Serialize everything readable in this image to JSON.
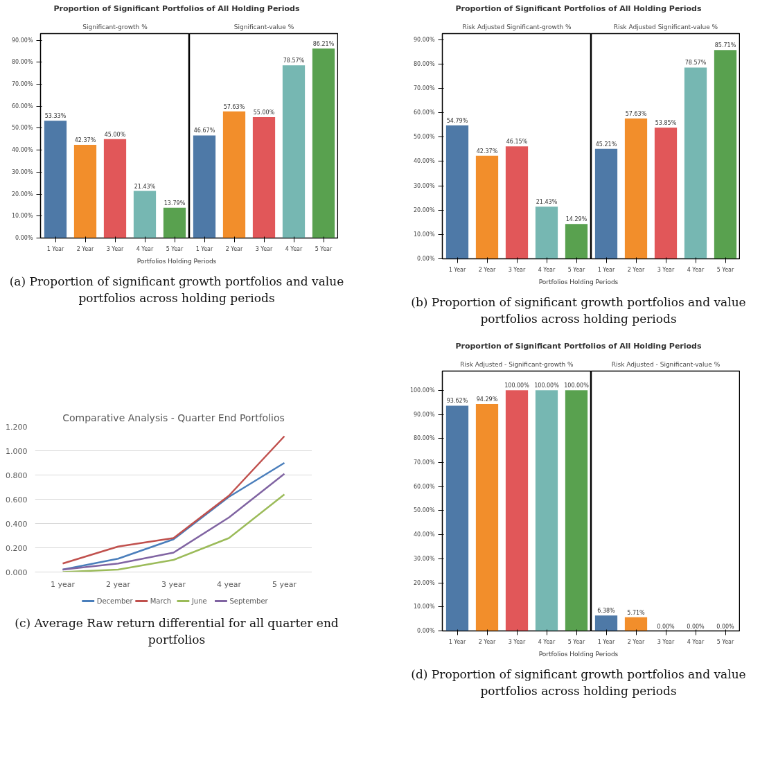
{
  "chart_data": [
    {
      "type": "bar",
      "title": "Proportion of Significant Portfolios of All Holding Periods",
      "subtitle": "Significant-growth %",
      "xlabel": "Portfolios Holding Periods",
      "categories": [
        "1 Year",
        "2 Year",
        "3 Year",
        "4 Year",
        "5 Year"
      ],
      "values": [
        53.33,
        42.37,
        45.0,
        21.43,
        13.79
      ],
      "colors": [
        "#4e79a7",
        "#f28e2b",
        "#e15759",
        "#76b7b2",
        "#59a14f"
      ],
      "value_labels": [
        "53.33%",
        "42.37%",
        "45.00%",
        "21.43%",
        "13.79%"
      ],
      "ylim": [
        0,
        93
      ],
      "yticks": [
        {
          "value": 0,
          "label": "0.00%"
        },
        {
          "value": 10,
          "label": "10.00%"
        },
        {
          "value": 20,
          "label": "20.00%"
        },
        {
          "value": 30,
          "label": "30.00%"
        },
        {
          "value": 40,
          "label": "40.00%"
        },
        {
          "value": 50,
          "label": "50.00%"
        },
        {
          "value": 60,
          "label": "60.00%"
        },
        {
          "value": 70,
          "label": "70.00%"
        },
        {
          "value": 80,
          "label": "80.00%"
        },
        {
          "value": 90,
          "label": "90.00%"
        }
      ]
    },
    {
      "type": "bar",
      "subtitle": "Significant-value %",
      "tick_labels": "x",
      "categories": [
        "1 Year",
        "2 Year",
        "3 Year",
        "4 Year",
        "5 Year"
      ],
      "values": [
        46.67,
        57.63,
        55.0,
        78.57,
        86.21
      ],
      "colors": [
        "#4e79a7",
        "#f28e2b",
        "#e15759",
        "#76b7b2",
        "#59a14f"
      ],
      "value_labels": [
        "46.67%",
        "57.63%",
        "55.00%",
        "78.57%",
        "86.21%"
      ],
      "ylim": [
        0,
        93
      ],
      "annotations": [
        "(a) Proportion of significant growth portfolios and value portfolios across holding periods"
      ]
    },
    {
      "type": "bar",
      "title": "Proportion of Significant Portfolios of All Holding Periods",
      "subtitle": "Risk Adjusted Significant-growth %",
      "xlabel": "Portfolios Holding Periods",
      "categories": [
        "1 Year",
        "2 Year",
        "3 Year",
        "4 Year",
        "5 Year"
      ],
      "values": [
        54.79,
        42.37,
        46.15,
        21.43,
        14.29
      ],
      "colors": [
        "#4e79a7",
        "#f28e2b",
        "#e15759",
        "#76b7b2",
        "#59a14f"
      ],
      "value_labels": [
        "54.79%",
        "42.37%",
        "46.15%",
        "21.43%",
        "14.29%"
      ],
      "ylim": [
        0,
        92.5
      ],
      "yticks": [
        {
          "value": 0,
          "label": "0.00%"
        },
        {
          "value": 10,
          "label": "10.00%"
        },
        {
          "value": 20,
          "label": "20.00%"
        },
        {
          "value": 30,
          "label": "30.00%"
        },
        {
          "value": 40,
          "label": "40.00%"
        },
        {
          "value": 50,
          "label": "50.00%"
        },
        {
          "value": 60,
          "label": "60.00%"
        },
        {
          "value": 70,
          "label": "70.00%"
        },
        {
          "value": 80,
          "label": "80.00%"
        },
        {
          "value": 90,
          "label": "90.00%"
        }
      ]
    },
    {
      "type": "bar",
      "subtitle": "Risk Adjusted Significant-value %",
      "tick_labels": "x",
      "categories": [
        "1 Year",
        "2 Year",
        "3 Year",
        "4 Year",
        "5 Year"
      ],
      "values": [
        45.21,
        57.63,
        53.85,
        78.57,
        85.71
      ],
      "colors": [
        "#4e79a7",
        "#f28e2b",
        "#e15759",
        "#76b7b2",
        "#59a14f"
      ],
      "value_labels": [
        "45.21%",
        "57.63%",
        "53.85%",
        "78.57%",
        "85.71%"
      ],
      "ylim": [
        0,
        92.5
      ],
      "annotations": [
        "(b) Proportion of significant growth portfolios and value portfolios across holding periods"
      ]
    },
    {
      "type": "line",
      "title": "Comparative Analysis - Quarter End Portfolios",
      "categories": [
        "1 year",
        "2 year",
        "3 year",
        "4 year",
        "5 year"
      ],
      "series": [
        {
          "name": "December",
          "color": "#4a7ebb",
          "values": [
            0.02,
            0.11,
            0.27,
            0.62,
            0.9
          ]
        },
        {
          "name": "March",
          "color": "#c0504d",
          "values": [
            0.07,
            0.21,
            0.28,
            0.63,
            1.12
          ]
        },
        {
          "name": "June",
          "color": "#9bbb59",
          "values": [
            0.0,
            0.02,
            0.1,
            0.28,
            0.64
          ]
        },
        {
          "name": "September",
          "color": "#8064a2",
          "values": [
            0.02,
            0.07,
            0.16,
            0.45,
            0.81
          ]
        }
      ],
      "ylim": [
        0,
        1.2
      ],
      "yticks": [
        {
          "value": 0,
          "label": "0.000"
        },
        {
          "value": 0.2,
          "label": "0.200"
        },
        {
          "value": 0.4,
          "label": "0.400"
        },
        {
          "value": 0.6,
          "label": "0.600"
        },
        {
          "value": 0.8,
          "label": "0.800"
        },
        {
          "value": 1.0,
          "label": "1.000"
        },
        {
          "value": 1.2,
          "label": "1.200"
        }
      ],
      "grid": "y",
      "legend": "bottom",
      "annotations": [
        "(c) Average Raw return differential for all quarter end portfolios"
      ]
    },
    {
      "type": "bar",
      "title": "Proportion of Significant Portfolios of All Holding Periods",
      "subtitle": "Risk Adjusted - Significant-growth %",
      "xlabel": "Portfolios Holding Periods",
      "categories": [
        "1 Year",
        "2 Year",
        "3 Year",
        "4 Year",
        "5 Year"
      ],
      "values": [
        93.62,
        94.29,
        100.0,
        100.0,
        100.0
      ],
      "colors": [
        "#4e79a7",
        "#f28e2b",
        "#e15759",
        "#76b7b2",
        "#59a14f"
      ],
      "value_labels": [
        "93.62%",
        "94.29%",
        "100.00%",
        "100.00%",
        "100.00%"
      ],
      "ylim": [
        0,
        108
      ],
      "yticks": [
        {
          "value": 0,
          "label": "0.00%"
        },
        {
          "value": 10,
          "label": "10.00%"
        },
        {
          "value": 20,
          "label": "20.00%"
        },
        {
          "value": 30,
          "label": "30.00%"
        },
        {
          "value": 40,
          "label": "40.00%"
        },
        {
          "value": 50,
          "label": "50.00%"
        },
        {
          "value": 60,
          "label": "60.00%"
        },
        {
          "value": 70,
          "label": "70.00%"
        },
        {
          "value": 80,
          "label": "80.00%"
        },
        {
          "value": 90,
          "label": "90.00%"
        },
        {
          "value": 100,
          "label": "100.00%"
        }
      ]
    },
    {
      "type": "bar",
      "subtitle": "Risk Adjusted - Significant-value %",
      "tick_labels": "x",
      "categories": [
        "1 Year",
        "2 Year",
        "3 Year",
        "4 Year",
        "5 Year"
      ],
      "values": [
        6.38,
        5.71,
        0.0,
        0.0,
        0.0
      ],
      "colors": [
        "#4e79a7",
        "#f28e2b",
        "#e15759",
        "#76b7b2",
        "#59a14f"
      ],
      "value_labels": [
        "6.38%",
        "5.71%",
        "0.00%",
        "0.00%",
        "0.00%"
      ],
      "ylim": [
        0,
        108
      ],
      "annotations": [
        "(d) Proportion of significant growth portfolios and value portfolios across holding periods"
      ]
    }
  ]
}
